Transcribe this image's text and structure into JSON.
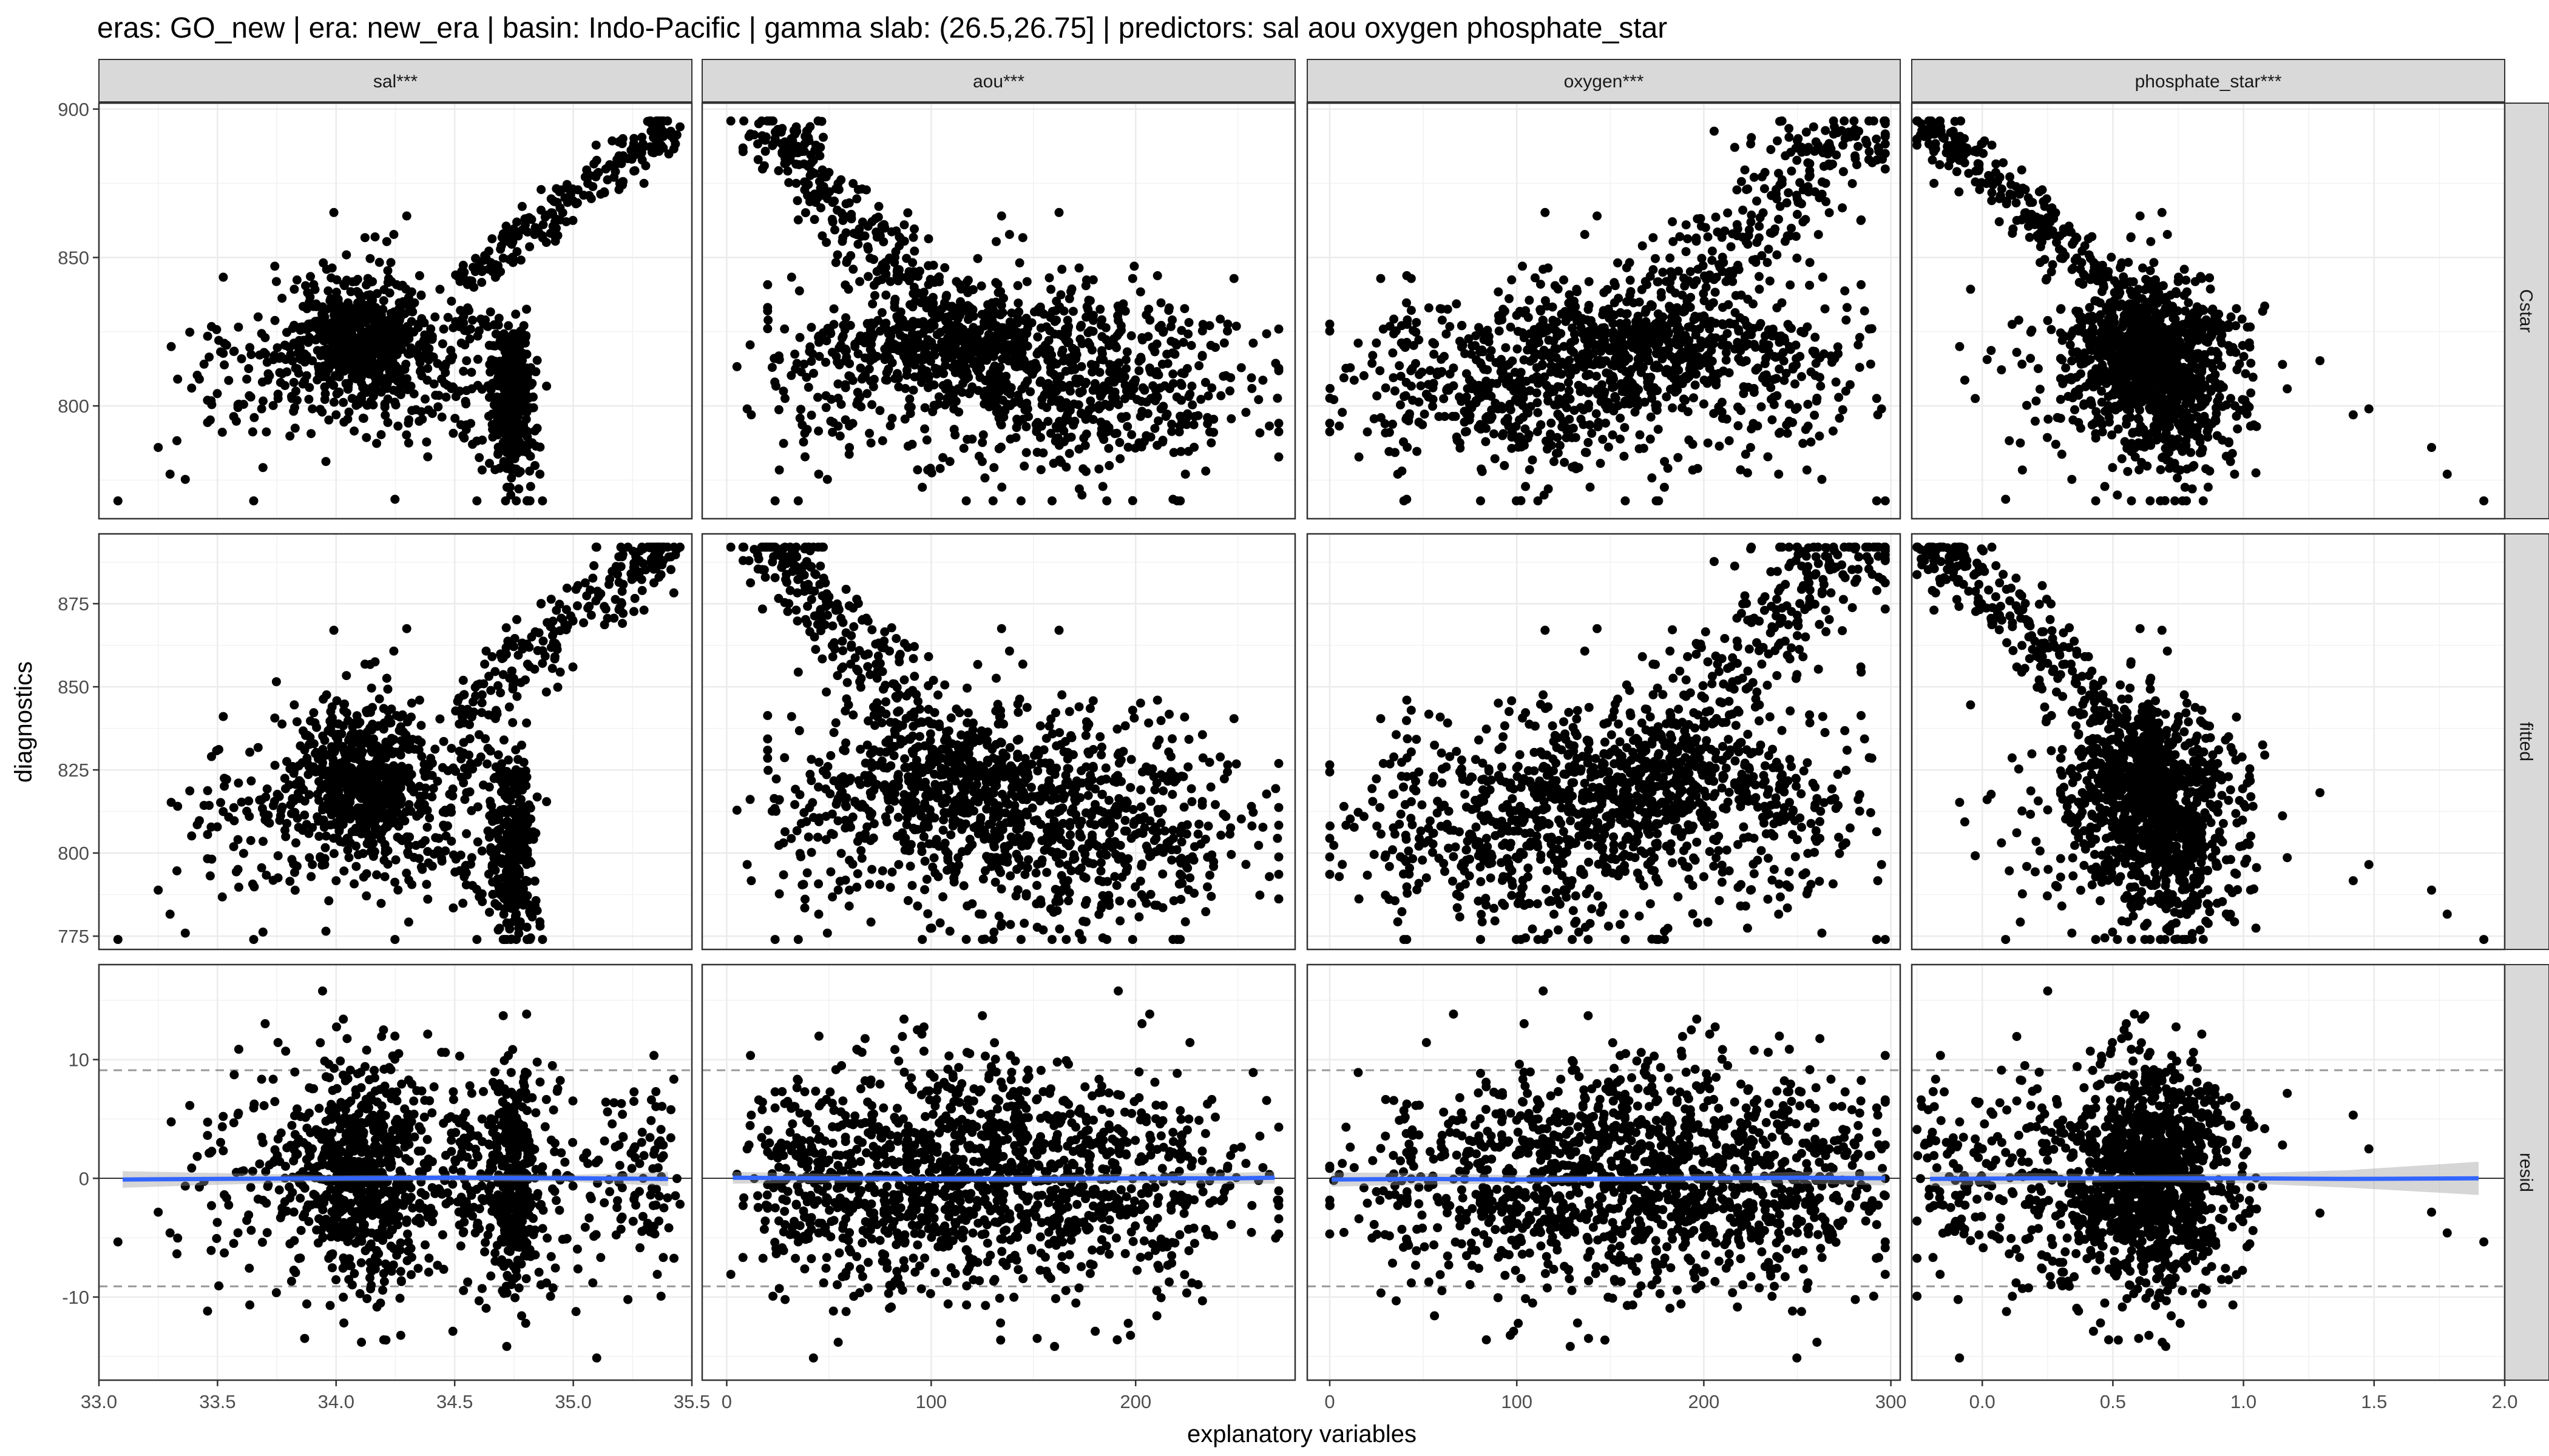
{
  "title": "eras: GO_new | era: new_era | basin: Indo-Pacific | gamma slab: (26.5,26.75] | predictors: sal aou oxygen phosphate_star",
  "chart_data": {
    "type": "scatter",
    "title": "eras: GO_new | era: new_era | basin: Indo-Pacific | gamma slab: (26.5,26.75] | predictors: sal aou oxygen phosphate_star",
    "xlabel": "explanatory variables",
    "ylabel": "diagnostics",
    "grid": true,
    "facet_columns": [
      {
        "key": "sal",
        "strip": "sal***",
        "xlim": [
          33.0,
          35.5
        ],
        "xticks": [
          33.0,
          33.5,
          34.0,
          34.5,
          35.0,
          35.5
        ],
        "xtick_labels": [
          "33.0",
          "33.5",
          "34.0",
          "34.5",
          "35.0",
          "35.5"
        ]
      },
      {
        "key": "aou",
        "strip": "aou***",
        "xlim": [
          -12,
          278
        ],
        "xticks": [
          0,
          100,
          200
        ],
        "xtick_labels": [
          "0",
          "100",
          "200"
        ]
      },
      {
        "key": "oxygen",
        "strip": "oxygen***",
        "xlim": [
          -12,
          305
        ],
        "xticks": [
          0,
          100,
          200,
          300
        ],
        "xtick_labels": [
          "0",
          "100",
          "200",
          "300"
        ]
      },
      {
        "key": "phosphate_star",
        "strip": "phosphate_star***",
        "xlim": [
          -0.27,
          2.0
        ],
        "xticks": [
          0.0,
          0.5,
          1.0,
          1.5,
          2.0
        ],
        "xtick_labels": [
          "0.0",
          "0.5",
          "1.0",
          "1.5",
          "2.0"
        ]
      }
    ],
    "facet_rows": [
      {
        "key": "Cstar",
        "strip": "Cstar",
        "ylim": [
          762,
          902
        ],
        "yticks": [
          800,
          850,
          900
        ],
        "ytick_labels": [
          "800",
          "850",
          "900"
        ]
      },
      {
        "key": "fitted",
        "strip": "fitted",
        "ylim": [
          771,
          896
        ],
        "yticks": [
          775,
          800,
          825,
          850,
          875
        ],
        "ytick_labels": [
          "775",
          "800",
          "825",
          "850",
          "875"
        ]
      },
      {
        "key": "resid",
        "strip": "resid",
        "ylim": [
          -17,
          18
        ],
        "yticks": [
          -10,
          0,
          10
        ],
        "ytick_labels": [
          "-10",
          "0",
          "10"
        ],
        "hlines": {
          "zero": 0,
          "dashed": [
            -9.1,
            9.1
          ]
        }
      }
    ],
    "residual_smooth": {
      "color": "#3366FF",
      "sal": [
        [
          33.1,
          -0.1
        ],
        [
          33.5,
          -0.05
        ],
        [
          34.0,
          0.0
        ],
        [
          34.5,
          0.05
        ],
        [
          35.0,
          0.0
        ],
        [
          35.4,
          -0.05
        ]
      ],
      "aou": [
        [
          3,
          0.05
        ],
        [
          50,
          0.0
        ],
        [
          100,
          -0.05
        ],
        [
          150,
          -0.05
        ],
        [
          200,
          0.0
        ],
        [
          250,
          0.0
        ],
        [
          268,
          0.05
        ]
      ],
      "oxygen": [
        [
          1,
          -0.1
        ],
        [
          50,
          -0.05
        ],
        [
          100,
          -0.1
        ],
        [
          150,
          -0.05
        ],
        [
          200,
          0.0
        ],
        [
          250,
          0.05
        ],
        [
          297,
          0.0
        ]
      ],
      "phosphate_star": [
        [
          -0.2,
          -0.05
        ],
        [
          0.2,
          0.0
        ],
        [
          0.6,
          0.0
        ],
        [
          1.0,
          0.0
        ],
        [
          1.4,
          -0.05
        ],
        [
          1.9,
          0.0
        ]
      ],
      "band_halfwidth": {
        "sal": [
          [
            33.1,
            0.7
          ],
          [
            34.0,
            0.25
          ],
          [
            35.0,
            0.3
          ],
          [
            35.4,
            0.6
          ]
        ],
        "aou": [
          [
            3,
            0.5
          ],
          [
            100,
            0.25
          ],
          [
            268,
            0.5
          ]
        ],
        "oxygen": [
          [
            1,
            0.6
          ],
          [
            150,
            0.25
          ],
          [
            297,
            0.6
          ]
        ],
        "phosphate_star": [
          [
            -0.2,
            0.6
          ],
          [
            0.7,
            0.25
          ],
          [
            1.3,
            0.6
          ],
          [
            1.9,
            1.4
          ]
        ]
      }
    },
    "point_counts_per_panel": 1400
  }
}
